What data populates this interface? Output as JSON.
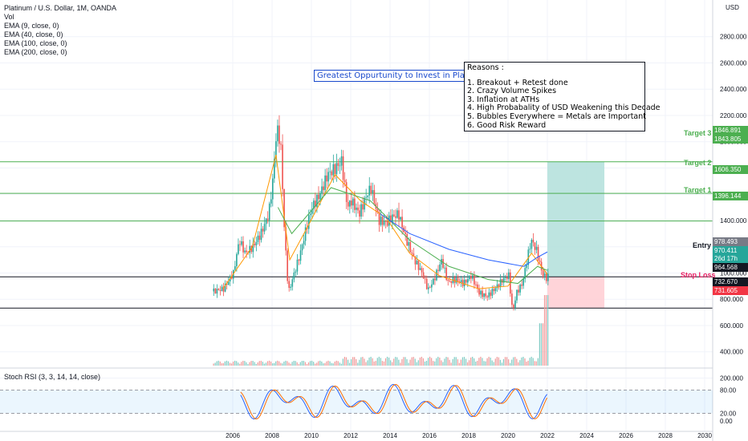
{
  "header": {
    "title": "Platinum / U.S. Dollar, 1M, OANDA",
    "indicators": [
      "Vol",
      "EMA (9, close, 0)",
      "EMA (40, close, 0)",
      "EMA (100, close, 0)",
      "EMA (200, close, 0)"
    ],
    "currency": "USD"
  },
  "annotations": {
    "headline": "Greatest Oppurtunity to Invest in Platinum",
    "reasons_title": "Reasons :",
    "reasons": [
      "1. Breakout + Retest done",
      "2. Crazy Volume Spikes",
      "3. Inflation at ATHs",
      "4. High Probabality of USD Weakening this Decade",
      "5. Bubbles Everywhere = Metals are Important",
      "6. Good Risk Reward"
    ]
  },
  "levels": {
    "target3": {
      "label": "Target 3",
      "price": 1846.891,
      "tag": "1846.891",
      "tag2": "1843.805"
    },
    "target2": {
      "label": "Target 2",
      "price": 1606.35,
      "tag": "1606.350"
    },
    "target1": {
      "label": "Target 1",
      "price": 1396.144,
      "tag": "1396.144"
    },
    "entry": {
      "label": "Entry",
      "price": 970.411,
      "tag": "970.411",
      "tag_sub": "26d 17h",
      "tag_top": "978.493"
    },
    "entry2": {
      "price": 964.568,
      "tag": "964.568"
    },
    "stop": {
      "label": "Stop Loss",
      "price": 732.67,
      "tag": "732.670",
      "tag2": "731.605"
    },
    "colors": {
      "target": "#4caf50",
      "stop": "#e91e63",
      "entry": "#131722",
      "profit_zone": "#b2dfdb",
      "loss_zone": "#ffcdd2"
    }
  },
  "chart_data": {
    "type": "candlestick",
    "title": "Platinum / U.S. Dollar, 1M, OANDA",
    "y_axis": {
      "ticks": [
        200,
        400,
        600,
        800,
        1000,
        1200,
        1400,
        1600,
        1800,
        2000,
        2200,
        2400,
        2600,
        2800
      ],
      "tick_labels": [
        "200.000",
        "400.000",
        "600.000",
        "800.000",
        "1000.000",
        "1200.000",
        "1400.000",
        "1600.000",
        "1800.000",
        "2000.000",
        "2200.000",
        "2400.000",
        "2600.000",
        "2800.000"
      ],
      "unit": "USD"
    },
    "x_axis": {
      "ticks": [
        2006,
        2008,
        2010,
        2012,
        2014,
        2016,
        2018,
        2020,
        2022,
        2024,
        2026,
        2028,
        2030
      ],
      "tick_labels": [
        "2006",
        "2008",
        "2010",
        "2012",
        "2014",
        "2016",
        "2018",
        "2020",
        "2022",
        "2024",
        "2026",
        "2028",
        "2030"
      ]
    },
    "price_series": [
      [
        2005.0,
        860
      ],
      [
        2005.5,
        880
      ],
      [
        2006.0,
        1000
      ],
      [
        2006.3,
        1250
      ],
      [
        2006.6,
        1150
      ],
      [
        2007.0,
        1200
      ],
      [
        2007.4,
        1300
      ],
      [
        2007.8,
        1450
      ],
      [
        2008.0,
        1700
      ],
      [
        2008.2,
        2100
      ],
      [
        2008.4,
        2000
      ],
      [
        2008.6,
        1300
      ],
      [
        2008.8,
        850
      ],
      [
        2009.0,
        950
      ],
      [
        2009.4,
        1150
      ],
      [
        2009.8,
        1400
      ],
      [
        2010.0,
        1500
      ],
      [
        2010.4,
        1600
      ],
      [
        2010.8,
        1750
      ],
      [
        2011.2,
        1800
      ],
      [
        2011.5,
        1850
      ],
      [
        2011.8,
        1500
      ],
      [
        2012.0,
        1550
      ],
      [
        2012.4,
        1450
      ],
      [
        2012.8,
        1600
      ],
      [
        2013.0,
        1650
      ],
      [
        2013.4,
        1400
      ],
      [
        2013.8,
        1380
      ],
      [
        2014.0,
        1420
      ],
      [
        2014.4,
        1450
      ],
      [
        2014.8,
        1250
      ],
      [
        2015.2,
        1100
      ],
      [
        2015.6,
        1000
      ],
      [
        2015.9,
        870
      ],
      [
        2016.2,
        950
      ],
      [
        2016.6,
        1100
      ],
      [
        2016.9,
        930
      ],
      [
        2017.3,
        950
      ],
      [
        2017.7,
        920
      ],
      [
        2018.1,
        980
      ],
      [
        2018.5,
        850
      ],
      [
        2018.9,
        820
      ],
      [
        2019.3,
        880
      ],
      [
        2019.7,
        950
      ],
      [
        2020.0,
        980
      ],
      [
        2020.2,
        700
      ],
      [
        2020.4,
        850
      ],
      [
        2020.7,
        920
      ],
      [
        2021.0,
        1150
      ],
      [
        2021.15,
        1250
      ],
      [
        2021.4,
        1180
      ],
      [
        2021.7,
        1000
      ],
      [
        2021.9,
        960
      ],
      [
        2022.0,
        975
      ]
    ],
    "ema_series": {
      "fast": [
        [
          2005.5,
          880
        ],
        [
          2007.0,
          1200
        ],
        [
          2008.2,
          1900
        ],
        [
          2008.9,
          1100
        ],
        [
          2009.8,
          1350
        ],
        [
          2011.2,
          1750
        ],
        [
          2012.5,
          1550
        ],
        [
          2013.8,
          1420
        ],
        [
          2015.0,
          1150
        ],
        [
          2016.5,
          980
        ],
        [
          2018.5,
          880
        ],
        [
          2020.0,
          900
        ],
        [
          2021.2,
          1150
        ],
        [
          2022.0,
          990
        ]
      ],
      "slow": [
        [
          2008.3,
          1500
        ],
        [
          2009.0,
          1300
        ],
        [
          2011.0,
          1650
        ],
        [
          2013.0,
          1550
        ],
        [
          2015.0,
          1250
        ],
        [
          2017.0,
          1050
        ],
        [
          2019.0,
          950
        ],
        [
          2020.5,
          920
        ],
        [
          2021.5,
          1050
        ],
        [
          2022.0,
          1020
        ]
      ],
      "ema100": [
        [
          2013.5,
          1450
        ],
        [
          2015.0,
          1300
        ],
        [
          2017.0,
          1180
        ],
        [
          2019.0,
          1100
        ],
        [
          2020.8,
          1050
        ],
        [
          2021.5,
          1120
        ],
        [
          2022.0,
          1160
        ]
      ]
    },
    "volume": {
      "spike_year": 2021.8,
      "spike_value": 800,
      "base_value": 80
    },
    "stoch_rsi": {
      "title": "Stoch RSI (3, 3, 14, 14, close)",
      "upper": 80,
      "lower": 20,
      "tick_labels": [
        "80.00",
        "20.00",
        "0.00"
      ]
    }
  }
}
